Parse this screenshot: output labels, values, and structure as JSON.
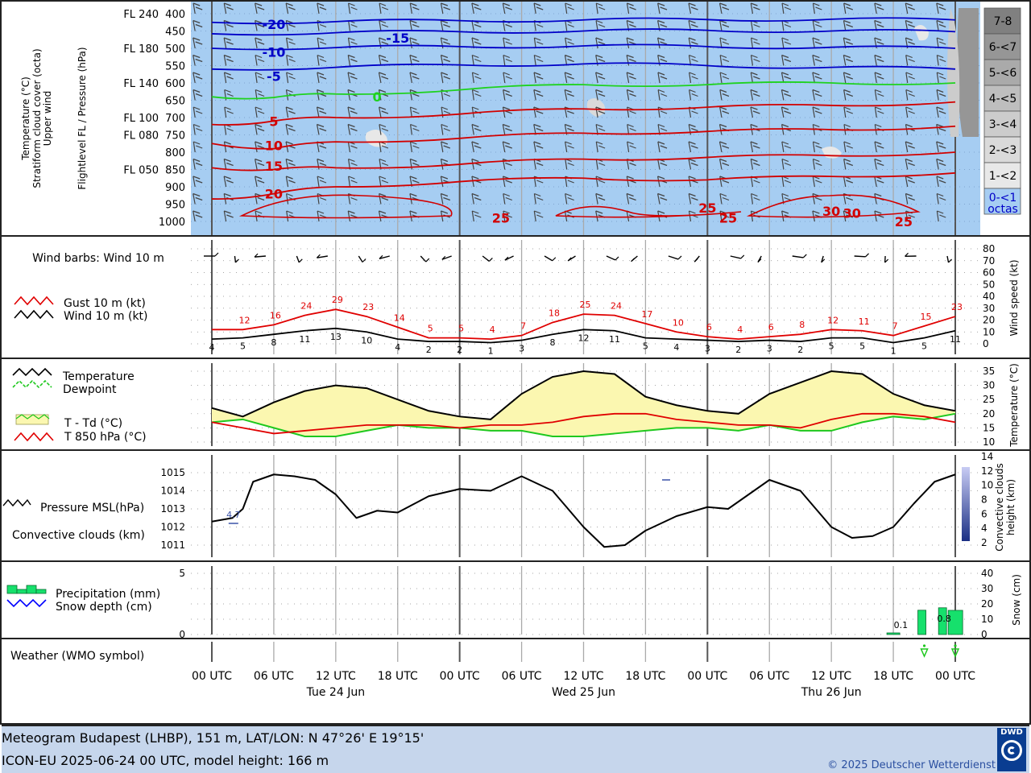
{
  "footer": {
    "line1": "Meteogram Budapest (LHBP), 151 m, LAT/LON: N 47°26' E 19°15'",
    "line2": "ICON-EU 2025-06-24 00 UTC, model height: 166 m",
    "copyright": "© 2025 Deutscher Wetterdienst",
    "logo_text": "DWD"
  },
  "time_axis": {
    "tick_labels": [
      "00 UTC",
      "06 UTC",
      "12 UTC",
      "18 UTC",
      "00 UTC",
      "06 UTC",
      "12 UTC",
      "18 UTC",
      "00 UTC",
      "06 UTC",
      "12 UTC",
      "18 UTC",
      "00 UTC"
    ],
    "tick_hours": [
      0,
      6,
      12,
      18,
      24,
      30,
      36,
      42,
      48,
      54,
      60,
      66,
      72
    ],
    "day_labels": [
      "Tue 24 Jun",
      "Wed 25 Jun",
      "Thu 26 Jun"
    ],
    "day_label_hours": [
      12,
      36,
      60
    ],
    "hour_range": [
      0,
      72
    ]
  },
  "colors": {
    "sky_blue": "#a6cdf2",
    "wind_black": "#000000",
    "gust_red": "#e00000",
    "temp_black": "#000000",
    "dew_green": "#1ec81e",
    "fill_yellow": "#fbf7b0",
    "iso_blue": "#0000c8",
    "iso_green": "#1ed21e",
    "iso_red": "#d20000",
    "precip_green": "#16e06c",
    "snow_blue": "#0000ff",
    "conv_blue": "#3b53a8"
  },
  "chart_data": [
    {
      "type": "line",
      "panel": "upper-air",
      "ylabel_left": [
        "Temperature (°C)",
        "Stratiform cloud cover (octa)",
        "Upper wind"
      ],
      "ylabel_mid": "Flightlevel FL / Pressure (hPa)",
      "pressure_levels": [
        400,
        450,
        500,
        550,
        600,
        650,
        700,
        750,
        800,
        850,
        900,
        950,
        1000
      ],
      "flight_levels": [
        {
          "label": "FL 240",
          "hpa": 400
        },
        {
          "label": "FL 180",
          "hpa": 500
        },
        {
          "label": "FL 140",
          "hpa": 600
        },
        {
          "label": "FL 100",
          "hpa": 700
        },
        {
          "label": "FL 080",
          "hpa": 750
        },
        {
          "label": "FL 050",
          "hpa": 850
        }
      ],
      "cloud_legend_title": "octas",
      "cloud_legend": [
        {
          "label": "7-8",
          "color": "#808080"
        },
        {
          "label": "6-<7",
          "color": "#969696"
        },
        {
          "label": "5-<6",
          "color": "#aaaaaa"
        },
        {
          "label": "4-<5",
          "color": "#bebebe"
        },
        {
          "label": "3-<4",
          "color": "#cccccc"
        },
        {
          "label": "2-<3",
          "color": "#dadada"
        },
        {
          "label": "1-<2",
          "color": "#e8e8e8"
        },
        {
          "label": "0-<1",
          "color": "#a6cdf2"
        }
      ],
      "isotherms": [
        {
          "value": -20,
          "color": "blue",
          "points": [
            [
              0,
              425
            ],
            [
              12,
              423
            ],
            [
              24,
              420
            ],
            [
              36,
              418
            ],
            [
              48,
              417
            ],
            [
              60,
              416
            ],
            [
              72,
              418
            ]
          ]
        },
        {
          "value": -15,
          "color": "blue",
          "points": [
            [
              0,
              458
            ],
            [
              12,
              455
            ],
            [
              24,
              452
            ],
            [
              36,
              450
            ],
            [
              48,
              448
            ],
            [
              60,
              450
            ],
            [
              72,
              452
            ]
          ]
        },
        {
          "value": -10,
          "color": "blue",
          "points": [
            [
              0,
              500
            ],
            [
              12,
              498
            ],
            [
              24,
              495
            ],
            [
              36,
              493
            ],
            [
              48,
              495
            ],
            [
              60,
              497
            ],
            [
              72,
              500
            ]
          ]
        },
        {
          "value": -5,
          "color": "blue",
          "points": [
            [
              0,
              560
            ],
            [
              12,
              555
            ],
            [
              24,
              548
            ],
            [
              36,
              545
            ],
            [
              48,
              550
            ],
            [
              60,
              555
            ],
            [
              72,
              560
            ]
          ]
        },
        {
          "value": 0,
          "color": "green",
          "points": [
            [
              0,
              640
            ],
            [
              6,
              642
            ],
            [
              12,
              632
            ],
            [
              24,
              620
            ],
            [
              36,
              605
            ],
            [
              48,
              605
            ],
            [
              60,
              600
            ],
            [
              72,
              600
            ]
          ]
        },
        {
          "value": 5,
          "color": "red",
          "points": [
            [
              0,
              720
            ],
            [
              6,
              710
            ],
            [
              12,
              700
            ],
            [
              24,
              690
            ],
            [
              36,
              675
            ],
            [
              48,
              670
            ],
            [
              60,
              665
            ],
            [
              72,
              655
            ]
          ]
        },
        {
          "value": 10,
          "color": "red",
          "points": [
            [
              0,
              775
            ],
            [
              6,
              790
            ],
            [
              12,
              770
            ],
            [
              24,
              760
            ],
            [
              36,
              745
            ],
            [
              48,
              740
            ],
            [
              60,
              735
            ],
            [
              72,
              725
            ]
          ]
        },
        {
          "value": 15,
          "color": "red",
          "points": [
            [
              0,
              845
            ],
            [
              6,
              850
            ],
            [
              12,
              845
            ],
            [
              24,
              835
            ],
            [
              36,
              820
            ],
            [
              48,
              815
            ],
            [
              60,
              810
            ],
            [
              72,
              800
            ]
          ]
        },
        {
          "value": 20,
          "color": "red",
          "points": [
            [
              0,
              935
            ],
            [
              6,
              920
            ],
            [
              12,
              900
            ],
            [
              24,
              885
            ],
            [
              36,
              875
            ],
            [
              48,
              880
            ],
            [
              60,
              870
            ],
            [
              72,
              860
            ]
          ]
        }
      ],
      "temp_labels": [
        {
          "text": "-20",
          "hour": 6,
          "hpa": 430,
          "color": "blue"
        },
        {
          "text": "-15",
          "hour": 18,
          "hpa": 470,
          "color": "blue"
        },
        {
          "text": "-10",
          "hour": 6,
          "hpa": 510,
          "color": "blue"
        },
        {
          "text": "-5",
          "hour": 6,
          "hpa": 580,
          "color": "blue"
        },
        {
          "text": "0",
          "hour": 16,
          "hpa": 640,
          "color": "green"
        },
        {
          "text": "5",
          "hour": 6,
          "hpa": 710,
          "color": "red"
        },
        {
          "text": "10",
          "hour": 6,
          "hpa": 780,
          "color": "red"
        },
        {
          "text": "15",
          "hour": 6,
          "hpa": 840,
          "color": "red"
        },
        {
          "text": "20",
          "hour": 6,
          "hpa": 920,
          "color": "red"
        },
        {
          "text": "25",
          "hour": 28,
          "hpa": 990,
          "color": "red"
        },
        {
          "text": "25",
          "hour": 48,
          "hpa": 960,
          "color": "red"
        },
        {
          "text": "30",
          "hour": 60,
          "hpa": 970,
          "color": "red"
        },
        {
          "text": "25",
          "hour": 67,
          "hpa": 1000,
          "color": "red"
        },
        {
          "text": "25",
          "hour": 74,
          "hpa": 990,
          "color": "red"
        },
        {
          "text": "30",
          "hour": 86,
          "hpa": 975,
          "color": "red"
        }
      ]
    },
    {
      "type": "line",
      "panel": "wind",
      "title_barbs": "Wind barbs: Wind 10 m",
      "series": [
        {
          "name": "Gust 10 m (kt)",
          "color": "red",
          "x": [
            0,
            3,
            6,
            9,
            12,
            15,
            18,
            21,
            24,
            27,
            30,
            33,
            36,
            39,
            42,
            45,
            48,
            51,
            54,
            57,
            60,
            63,
            66,
            69,
            72
          ],
          "values": [
            12,
            12,
            16,
            24,
            29,
            23,
            14,
            5,
            5,
            4,
            7,
            18,
            25,
            24,
            17,
            10,
            6,
            4,
            6,
            8,
            12,
            11,
            7,
            15,
            23
          ]
        },
        {
          "name": "Wind 10 m (kt)",
          "color": "black",
          "x": [
            0,
            3,
            6,
            9,
            12,
            15,
            18,
            21,
            24,
            27,
            30,
            33,
            36,
            39,
            42,
            45,
            48,
            51,
            54,
            57,
            60,
            63,
            66,
            69,
            72
          ],
          "values": [
            4,
            5,
            8,
            11,
            13,
            10,
            4,
            2,
            2,
            1,
            3,
            8,
            12,
            11,
            5,
            4,
            3,
            2,
            3,
            2,
            5,
            5,
            1,
            5,
            11
          ]
        }
      ],
      "gust_labels": [
        12,
        16,
        24,
        29,
        23,
        14,
        5,
        5,
        4,
        7,
        18,
        25,
        24,
        17,
        10,
        6,
        4,
        6,
        8,
        12,
        11,
        7,
        15,
        23
      ],
      "gust_label_hours": [
        3,
        6,
        9,
        12,
        15,
        18,
        21,
        24,
        27,
        30,
        33,
        36,
        39,
        42,
        45,
        48,
        51,
        54,
        57,
        60,
        63,
        66,
        69,
        72
      ],
      "wind_labels": [
        4,
        5,
        8,
        11,
        13,
        10,
        4,
        2,
        2,
        1,
        3,
        8,
        12,
        11,
        5,
        4,
        3,
        2,
        3,
        2,
        5,
        5,
        1,
        5,
        11
      ],
      "wind_label_hours": [
        0,
        3,
        6,
        9,
        12,
        15,
        18,
        21,
        24,
        27,
        30,
        33,
        36,
        39,
        42,
        45,
        48,
        51,
        54,
        57,
        60,
        63,
        66,
        69,
        72
      ],
      "ylabel_right": "Wind speed (kt)",
      "ylim": [
        0,
        80
      ],
      "yticks": [
        0,
        10,
        20,
        30,
        40,
        50,
        60,
        70,
        80
      ]
    },
    {
      "type": "area",
      "panel": "temperature",
      "series": [
        {
          "name": "Temperature",
          "color": "black",
          "x": [
            0,
            3,
            6,
            9,
            12,
            15,
            18,
            21,
            24,
            27,
            30,
            33,
            36,
            39,
            42,
            45,
            48,
            51,
            54,
            57,
            60,
            63,
            66,
            69,
            72
          ],
          "values": [
            22,
            19,
            24,
            28,
            30,
            29,
            25,
            21,
            19,
            18,
            27,
            33,
            35,
            34,
            26,
            23,
            21,
            20,
            27,
            31,
            35,
            34,
            27,
            23,
            21
          ]
        },
        {
          "name": "Dewpoint",
          "color": "green",
          "x": [
            0,
            3,
            6,
            9,
            12,
            15,
            18,
            21,
            24,
            27,
            30,
            33,
            36,
            39,
            42,
            45,
            48,
            51,
            54,
            57,
            60,
            63,
            66,
            69,
            72
          ],
          "values": [
            17,
            18,
            15,
            12,
            12,
            14,
            16,
            15,
            15,
            14,
            14,
            12,
            12,
            13,
            14,
            15,
            15,
            14,
            16,
            14,
            14,
            17,
            19,
            18,
            20
          ]
        },
        {
          "name": "T 850 hPa (°C)",
          "color": "red",
          "x": [
            0,
            3,
            6,
            9,
            12,
            15,
            18,
            21,
            24,
            27,
            30,
            33,
            36,
            39,
            42,
            45,
            48,
            51,
            54,
            57,
            60,
            63,
            66,
            69,
            72
          ],
          "values": [
            17,
            15,
            13,
            14,
            15,
            16,
            16,
            16,
            15,
            16,
            16,
            17,
            19,
            20,
            20,
            18,
            17,
            16,
            16,
            15,
            18,
            20,
            20,
            19,
            17
          ]
        }
      ],
      "legend_fill": "T - Td (°C)",
      "ylabel_right": "Temperature (°C)",
      "ylim": [
        9,
        36
      ],
      "yticks": [
        10,
        15,
        20,
        25,
        30,
        35
      ]
    },
    {
      "type": "line",
      "panel": "pressure",
      "series": [
        {
          "name": "Pressure MSL(hPa)",
          "color": "black",
          "x": [
            0,
            2,
            3,
            4,
            6,
            8,
            10,
            12,
            14,
            16,
            18,
            21,
            24,
            27,
            30,
            33,
            36,
            38,
            40,
            42,
            45,
            48,
            50,
            54,
            57,
            60,
            62,
            64,
            66,
            68,
            70,
            72
          ],
          "values": [
            1012.3,
            1012.5,
            1013.0,
            1014.5,
            1014.9,
            1014.8,
            1014.6,
            1013.8,
            1012.5,
            1012.9,
            1012.8,
            1013.7,
            1014.1,
            1014.0,
            1014.8,
            1014.0,
            1012.0,
            1010.9,
            1011.0,
            1011.8,
            1012.6,
            1013.1,
            1013.0,
            1014.6,
            1014.0,
            1012.0,
            1011.4,
            1011.5,
            1012.0,
            1013.3,
            1014.5,
            1014.9
          ]
        }
      ],
      "conv_label": "Convective clouds (km)",
      "conv_values": [
        {
          "text": "4.7",
          "hour": 1,
          "km": 4.7
        }
      ],
      "ylabel_right": "Convective clouds height (km)",
      "ylim": [
        1010.6,
        1015.8
      ],
      "yticks": [
        1011,
        1012,
        1013,
        1014,
        1015
      ],
      "yticks_right": [
        2,
        4,
        6,
        8,
        10,
        12,
        14
      ]
    },
    {
      "type": "bar",
      "panel": "precipitation",
      "series": [
        {
          "name": "Precipitation (mm)",
          "color": "green",
          "x": [
            66,
            69,
            71
          ],
          "values": [
            0.1,
            0.8,
            1.0
          ]
        },
        {
          "name": "Snow depth (cm)",
          "color": "blue",
          "x": [],
          "values": []
        }
      ],
      "precip_labels": [
        {
          "text": "0.1",
          "hour": 66.8
        },
        {
          "text": "0.8",
          "hour": 71
        }
      ],
      "ylabel_right": "Snow (cm)",
      "ylim": [
        0,
        5
      ],
      "yticks": [
        0,
        5
      ],
      "yticks_right": [
        0,
        10,
        20,
        30,
        40
      ]
    },
    {
      "type": "table",
      "panel": "weather",
      "title": "Weather (WMO symbol)",
      "symbols": [
        {
          "hour": 69,
          "symbol": "shower"
        },
        {
          "hour": 72,
          "symbol": "shower"
        }
      ]
    }
  ]
}
